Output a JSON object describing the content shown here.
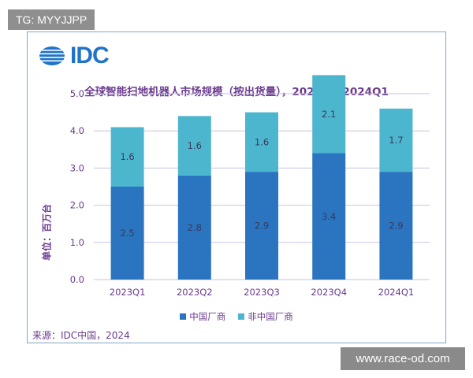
{
  "tag_text": "TG: MYYJJPP",
  "watermark_text": "www.race-od.com",
  "logo_text": "IDC",
  "source_text": "来源：IDC中国，2024",
  "colors": {
    "china": "#2a74c0",
    "non_china": "#4db6cf",
    "text": "#6a3a8e",
    "grid": "#c9c2e0"
  },
  "chart_data": {
    "type": "bar",
    "stacked": true,
    "title": "全球智能扫地机器人市场规模（按出货量），2023Q1-2024Q1",
    "xlabel": "",
    "ylabel": "单位：百万台",
    "categories": [
      "2023Q1",
      "2023Q2",
      "2023Q3",
      "2023Q4",
      "2024Q1"
    ],
    "series": [
      {
        "name": "中国厂商",
        "values": [
          2.5,
          2.8,
          2.9,
          3.4,
          2.9
        ]
      },
      {
        "name": "非中国厂商",
        "values": [
          1.6,
          1.6,
          1.6,
          2.1,
          1.7
        ]
      }
    ],
    "ylim": [
      0,
      5.0
    ],
    "yticks": [
      "0.0",
      "1.0",
      "2.0",
      "3.0",
      "4.0",
      "5.0"
    ],
    "grid": true,
    "legend": "bottom"
  }
}
